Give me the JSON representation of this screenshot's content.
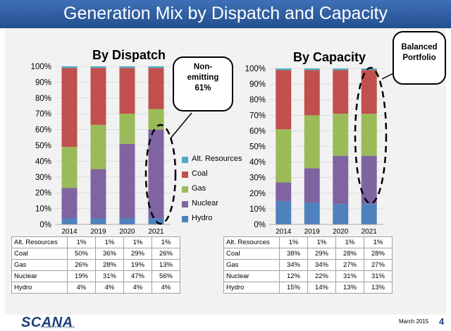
{
  "header": {
    "title": "Generation Mix by Dispatch and Capacity"
  },
  "colors": {
    "Alt. Resources": "#4bacc6",
    "Coal": "#c0504d",
    "Gas": "#9bbb59",
    "Nuclear": "#8064a2",
    "Hydro": "#4f81bd"
  },
  "legend": [
    "Alt. Resources",
    "Coal",
    "Gas",
    "Nuclear",
    "Hydro"
  ],
  "callouts": {
    "dispatch": [
      "Non-",
      "emitting",
      "61%"
    ],
    "capacity": [
      "Balanced",
      "Portfolio"
    ]
  },
  "chart_data": [
    {
      "type": "bar",
      "stacked": true,
      "title": "By Dispatch",
      "categories": [
        "2014",
        "2019",
        "2020",
        "2021"
      ],
      "y_ticks": [
        "0%",
        "10%",
        "20%",
        "30%",
        "40%",
        "50%",
        "60%",
        "70%",
        "80%",
        "90%",
        "100%"
      ],
      "ylim": [
        0,
        100
      ],
      "series": [
        {
          "name": "Hydro",
          "values": [
            4,
            4,
            4,
            4
          ]
        },
        {
          "name": "Nuclear",
          "values": [
            19,
            31,
            47,
            56
          ]
        },
        {
          "name": "Gas",
          "values": [
            26,
            28,
            19,
            13
          ]
        },
        {
          "name": "Coal",
          "values": [
            50,
            36,
            29,
            26
          ]
        },
        {
          "name": "Alt. Resources",
          "values": [
            1,
            1,
            1,
            1
          ]
        }
      ],
      "table": {
        "rows": [
          {
            "label": "Alt. Resources",
            "values": [
              "1%",
              "1%",
              "1%",
              "1%"
            ]
          },
          {
            "label": "Coal",
            "values": [
              "50%",
              "36%",
              "29%",
              "26%"
            ]
          },
          {
            "label": "Gas",
            "values": [
              "26%",
              "28%",
              "19%",
              "13%"
            ]
          },
          {
            "label": "Nuclear",
            "values": [
              "19%",
              "31%",
              "47%",
              "56%"
            ]
          },
          {
            "label": "Hydro",
            "values": [
              "4%",
              "4%",
              "4%",
              "4%"
            ]
          }
        ]
      }
    },
    {
      "type": "bar",
      "stacked": true,
      "title": "By Capacity",
      "categories": [
        "2014",
        "2019",
        "2020",
        "2021"
      ],
      "y_ticks": [
        "0%",
        "10%",
        "20%",
        "30%",
        "40%",
        "50%",
        "60%",
        "70%",
        "80%",
        "90%",
        "100%"
      ],
      "ylim": [
        0,
        100
      ],
      "series": [
        {
          "name": "Hydro",
          "values": [
            15,
            14,
            13,
            13
          ]
        },
        {
          "name": "Nuclear",
          "values": [
            12,
            22,
            31,
            31
          ]
        },
        {
          "name": "Gas",
          "values": [
            34,
            34,
            27,
            27
          ]
        },
        {
          "name": "Coal",
          "values": [
            38,
            29,
            28,
            28
          ]
        },
        {
          "name": "Alt. Resources",
          "values": [
            1,
            1,
            1,
            1
          ]
        }
      ],
      "table": {
        "rows": [
          {
            "label": "Alt. Resources",
            "values": [
              "1%",
              "1%",
              "1%",
              "1%"
            ]
          },
          {
            "label": "Coal",
            "values": [
              "38%",
              "29%",
              "28%",
              "28%"
            ]
          },
          {
            "label": "Gas",
            "values": [
              "34%",
              "34%",
              "27%",
              "27%"
            ]
          },
          {
            "label": "Nuclear",
            "values": [
              "12%",
              "22%",
              "31%",
              "31%"
            ]
          },
          {
            "label": "Hydro",
            "values": [
              "15%",
              "14%",
              "13%",
              "13%"
            ]
          }
        ]
      }
    }
  ],
  "footer": {
    "logo": "SCANA",
    "logo_tagline": "POWER FOR LIVING",
    "date": "March 2015",
    "page": "4"
  }
}
